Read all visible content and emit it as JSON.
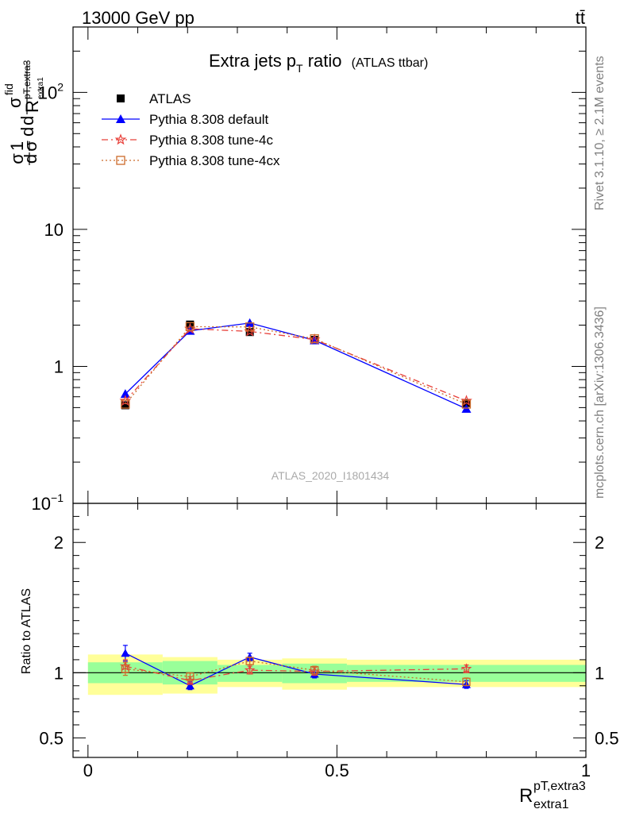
{
  "header": {
    "energy_label": "13000 GeV pp",
    "process_label": "tt̄"
  },
  "side_labels": {
    "rivet": "Rivet 3.1.10, ≥ 2.1M events",
    "mcplots": "mcplots.cern.ch [arXiv:1306.3436]"
  },
  "chart_data": [
    {
      "type": "line",
      "title_main": "Extra jets p",
      "title_sub": "T",
      "title_tail": " ratio",
      "title_small": "(ATLAS ttbar)",
      "analysis_label": "ATLAS_2020_I1801434",
      "ylabel": "1/σ dσ^fid / dR^pT,extra3_extra1",
      "yscale": "log",
      "ylim": [
        0.1,
        300
      ],
      "xlim": [
        -0.03,
        1.0
      ],
      "y_ticks": [
        {
          "value": 0.1,
          "base": "10",
          "exp": "−1"
        },
        {
          "value": 1,
          "base": "1",
          "exp": ""
        },
        {
          "value": 10,
          "base": "10",
          "exp": ""
        },
        {
          "value": 100,
          "base": "10",
          "exp": "2"
        }
      ],
      "legend_position": "top-left",
      "bins": [
        0.0,
        0.15,
        0.26,
        0.39,
        0.52,
        1.0
      ],
      "x": [
        0.075,
        0.205,
        0.325,
        0.455,
        0.76
      ],
      "series": [
        {
          "name": "ATLAS",
          "color": "#000000",
          "marker": "square",
          "line": "none",
          "values": [
            0.52,
            2.02,
            1.78,
            1.56,
            0.54
          ]
        },
        {
          "name": "Pythia 8.308 default",
          "color": "#0000ff",
          "marker": "triangle",
          "line": "solid",
          "values": [
            0.63,
            1.82,
            2.07,
            1.55,
            0.49
          ]
        },
        {
          "name": "Pythia 8.308 tune-4c",
          "color": "#e8403a",
          "marker": "star",
          "line": "dashdot",
          "values": [
            0.56,
            1.88,
            1.8,
            1.57,
            0.56
          ]
        },
        {
          "name": "Pythia 8.308 tune-4cx",
          "color": "#cc6a2a",
          "marker": "open-square",
          "line": "dotted",
          "values": [
            0.53,
            1.95,
            1.94,
            1.59,
            0.53
          ]
        }
      ]
    },
    {
      "type": "line",
      "ylabel": "Ratio to ATLAS",
      "xlabel_base": "R",
      "xlabel_sup": "pT,extra3",
      "xlabel_sub": "extra1",
      "yscale": "linear",
      "ylim": [
        0.35,
        2.3
      ],
      "xlim": [
        -0.03,
        1.0
      ],
      "y_ticks": [
        0.5,
        1,
        2
      ],
      "y_tick_labels": [
        "0.5",
        "1",
        "2"
      ],
      "x_ticks": [
        0,
        0.5,
        1
      ],
      "x_tick_labels": [
        "0",
        "0.5",
        "1"
      ],
      "bins": [
        0.0,
        0.15,
        0.26,
        0.39,
        0.52,
        1.0
      ],
      "band_inner": [
        [
          0.92,
          1.08
        ],
        [
          0.91,
          1.09
        ],
        [
          0.93,
          1.06
        ],
        [
          0.92,
          1.07
        ],
        [
          0.93,
          1.06
        ]
      ],
      "band_outer": [
        [
          0.83,
          1.14
        ],
        [
          0.84,
          1.12
        ],
        [
          0.89,
          1.1
        ],
        [
          0.87,
          1.11
        ],
        [
          0.89,
          1.1
        ]
      ],
      "x": [
        0.075,
        0.205,
        0.325,
        0.455,
        0.76
      ],
      "series": [
        {
          "name": "Pythia 8.308 default",
          "color": "#0000ff",
          "marker": "triangle",
          "line": "solid",
          "values": [
            1.15,
            0.9,
            1.12,
            0.99,
            0.91
          ],
          "errors": [
            0.06,
            0.03,
            0.03,
            0.03,
            0.03
          ]
        },
        {
          "name": "Pythia 8.308 tune-4c",
          "color": "#e8403a",
          "marker": "star",
          "line": "dashdot",
          "values": [
            1.05,
            0.94,
            1.02,
            1.01,
            1.03
          ],
          "errors": [
            0.05,
            0.03,
            0.03,
            0.03,
            0.03
          ]
        },
        {
          "name": "Pythia 8.308 tune-4cx",
          "color": "#cc6a2a",
          "marker": "open-square",
          "line": "dotted",
          "values": [
            1.03,
            0.97,
            1.09,
            1.02,
            0.93
          ],
          "errors": [
            0.05,
            0.03,
            0.03,
            0.03,
            0.03
          ]
        }
      ]
    }
  ]
}
